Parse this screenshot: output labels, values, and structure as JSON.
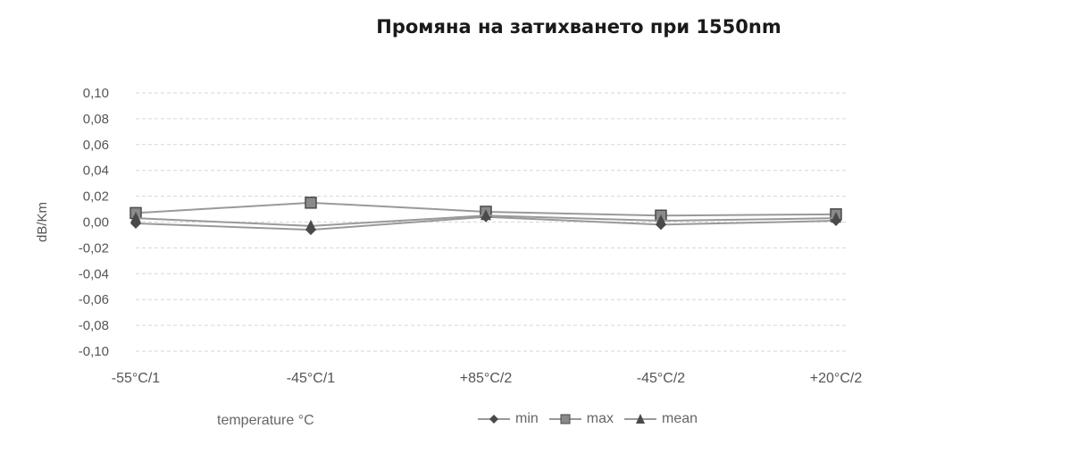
{
  "chart_data": {
    "type": "line",
    "title": "Промяна на затихването при 1550nm",
    "xlabel": "temperature °C",
    "ylabel": "dB/Km",
    "categories": [
      "-55°C/1",
      "-45°C/1",
      "+85°C/2",
      "-45°C/2",
      "+20°C/2"
    ],
    "ylim": [
      -0.1,
      0.1
    ],
    "yticks": [
      "0,10",
      "0,08",
      "0,06",
      "0,04",
      "0,02",
      "0,00",
      "-0,02",
      "-0,04",
      "-0,06",
      "-0,08",
      "-0,10"
    ],
    "grid": true,
    "legend_position": "bottom",
    "series": [
      {
        "name": "min",
        "marker": "diamond",
        "values": [
          -0.001,
          -0.006,
          0.004,
          -0.002,
          0.001
        ]
      },
      {
        "name": "max",
        "marker": "square",
        "values": [
          0.007,
          0.015,
          0.008,
          0.005,
          0.006
        ]
      },
      {
        "name": "mean",
        "marker": "triangle",
        "values": [
          0.003,
          -0.003,
          0.005,
          0.001,
          0.003
        ]
      }
    ],
    "line_color": "#999999",
    "marker_color": "#4a4a4a"
  }
}
